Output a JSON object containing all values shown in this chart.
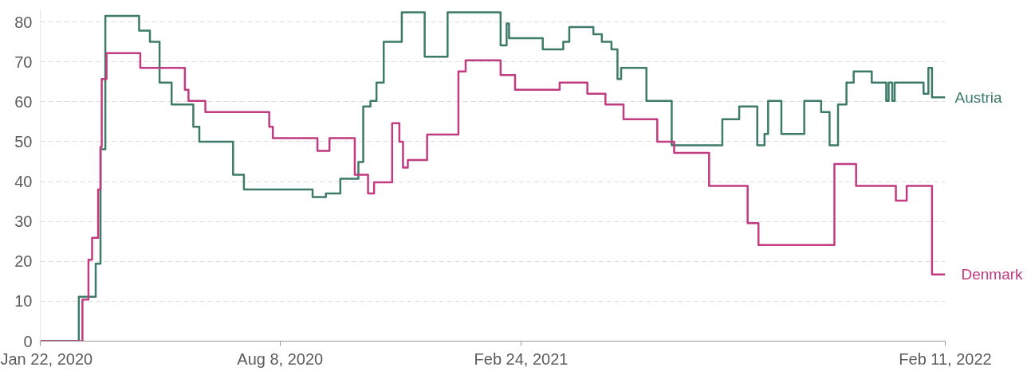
{
  "chart_data": {
    "type": "step",
    "xlim": [
      "2020-01-22",
      "2022-02-11"
    ],
    "xticks": [
      {
        "value": "2020-01-22",
        "label": "Jan 22, 2020"
      },
      {
        "value": "2020-08-08",
        "label": "Aug 8, 2020"
      },
      {
        "value": "2021-02-24",
        "label": "Feb 24, 2021"
      },
      {
        "value": "2022-02-11",
        "label": "Feb 11, 2022"
      }
    ],
    "ylim": [
      0,
      83
    ],
    "yticks": [
      0,
      10,
      20,
      30,
      40,
      50,
      60,
      70,
      80
    ],
    "grid": "y",
    "line_style": "solid",
    "series": [
      {
        "name": "Austria",
        "color": "#3d7a68",
        "x": [
          "2020-01-22",
          "2020-02-23",
          "2020-03-08",
          "2020-03-12",
          "2020-03-16",
          "2020-04-13",
          "2020-04-22",
          "2020-04-30",
          "2020-05-10",
          "2020-05-28",
          "2020-06-02",
          "2020-06-30",
          "2020-07-09",
          "2020-09-04",
          "2020-09-15",
          "2020-09-27",
          "2020-10-12",
          "2020-10-16",
          "2020-10-22",
          "2020-10-27",
          "2020-11-02",
          "2020-11-17",
          "2020-12-06",
          "2020-12-25",
          "2021-02-07",
          "2021-02-12",
          "2021-02-14",
          "2021-03-14",
          "2021-03-31",
          "2021-04-05",
          "2021-04-25",
          "2021-05-02",
          "2021-05-10",
          "2021-05-15",
          "2021-05-18",
          "2021-06-08",
          "2021-06-29",
          "2021-08-10",
          "2021-08-24",
          "2021-09-08",
          "2021-09-14",
          "2021-09-17",
          "2021-09-28",
          "2021-10-17",
          "2021-10-31",
          "2021-11-07",
          "2021-11-14",
          "2021-11-21",
          "2021-11-27",
          "2021-12-12",
          "2021-12-24",
          "2021-12-26",
          "2021-12-29",
          "2021-12-31",
          "2022-01-24",
          "2022-01-28",
          "2022-01-31",
          "2022-02-11"
        ],
        "values": [
          0,
          11.1,
          19.4,
          48.1,
          81.5,
          77.8,
          75.0,
          64.8,
          59.3,
          53.7,
          50.0,
          41.7,
          38.0,
          36.1,
          37.0,
          40.7,
          44.9,
          58.8,
          60.2,
          64.8,
          75.0,
          82.4,
          71.3,
          82.4,
          74.1,
          79.6,
          75.9,
          73.1,
          75.0,
          78.7,
          76.9,
          75.0,
          73.1,
          65.7,
          68.5,
          60.2,
          49.1,
          55.6,
          58.8,
          49.1,
          51.9,
          60.2,
          51.9,
          60.2,
          57.4,
          49.1,
          59.3,
          64.8,
          67.6,
          64.8,
          60.2,
          64.8,
          60.2,
          64.8,
          62.0,
          68.5,
          61.1,
          61.1
        ]
      },
      {
        "name": "Denmark",
        "color": "#c13b80",
        "x": [
          "2020-01-22",
          "2020-02-26",
          "2020-03-02",
          "2020-03-05",
          "2020-03-10",
          "2020-03-12",
          "2020-03-13",
          "2020-03-17",
          "2020-04-14",
          "2020-05-21",
          "2020-05-24",
          "2020-06-07",
          "2020-07-30",
          "2020-08-02",
          "2020-09-08",
          "2020-09-18",
          "2020-10-09",
          "2020-10-20",
          "2020-10-25",
          "2020-11-09",
          "2020-11-15",
          "2020-11-18",
          "2020-11-22",
          "2020-12-08",
          "2021-01-03",
          "2021-01-09",
          "2021-02-07",
          "2021-02-19",
          "2021-03-28",
          "2021-04-20",
          "2021-05-05",
          "2021-05-20",
          "2021-06-17",
          "2021-07-01",
          "2021-07-30",
          "2021-08-31",
          "2021-09-09",
          "2021-11-11",
          "2021-11-29",
          "2022-01-01",
          "2022-01-10",
          "2022-01-31",
          "2022-02-11"
        ],
        "values": [
          0,
          10.4,
          20.4,
          25.9,
          38.0,
          48.7,
          65.7,
          72.2,
          68.5,
          63.0,
          60.2,
          57.4,
          53.7,
          50.9,
          47.7,
          50.9,
          41.7,
          37.0,
          39.8,
          54.6,
          50.0,
          43.5,
          45.4,
          51.8,
          67.6,
          70.4,
          66.7,
          63.0,
          64.8,
          62.0,
          59.3,
          55.6,
          50.0,
          47.2,
          38.9,
          29.6,
          24.1,
          44.4,
          38.9,
          35.2,
          38.9,
          16.7,
          16.7
        ]
      }
    ]
  }
}
